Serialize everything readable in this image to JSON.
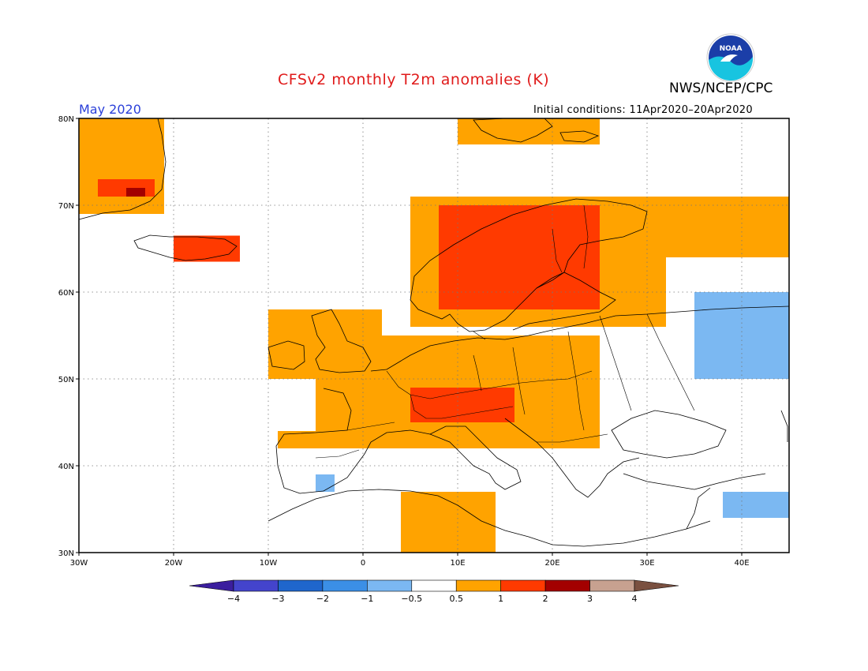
{
  "header": {
    "title": "CFSv2 monthly T2m anomalies (K)",
    "agency": "NWS/NCEP/CPC",
    "month": "May 2020",
    "initial_conditions": "Initial conditions: 11Apr2020–20Apr2020"
  },
  "logo": {
    "text": "NOAA",
    "colors": {
      "top": "#1b3ea8",
      "bottom": "#18c4e0"
    }
  },
  "map": {
    "lon_range": [
      -30,
      45
    ],
    "lat_range": [
      30,
      80
    ],
    "lat_ticks": [
      {
        "value": 80,
        "label": "80N"
      },
      {
        "value": 70,
        "label": "70N"
      },
      {
        "value": 60,
        "label": "60N"
      },
      {
        "value": 50,
        "label": "50N"
      },
      {
        "value": 40,
        "label": "40N"
      },
      {
        "value": 30,
        "label": "30N"
      }
    ],
    "lon_ticks": [
      {
        "value": -30,
        "label": "30W"
      },
      {
        "value": -20,
        "label": "20W"
      },
      {
        "value": -10,
        "label": "10W"
      },
      {
        "value": 0,
        "label": "0"
      },
      {
        "value": 10,
        "label": "10E"
      },
      {
        "value": 20,
        "label": "20E"
      },
      {
        "value": 30,
        "label": "30E"
      },
      {
        "value": 40,
        "label": "40E"
      }
    ],
    "anomaly_regions": [
      {
        "name": "Greenland",
        "level": "0.5–1",
        "lon": [
          -30,
          -21
        ],
        "lat": [
          69,
          80
        ]
      },
      {
        "name": "Greenland east coast",
        "level": "1–2",
        "lon": [
          -28,
          -22
        ],
        "lat": [
          71,
          73
        ]
      },
      {
        "name": "Greenland core",
        "level": "2–3",
        "lon": [
          -25,
          -23
        ],
        "lat": [
          71,
          72
        ]
      },
      {
        "name": "Iceland",
        "level": "1–2",
        "lon": [
          -20,
          -13
        ],
        "lat": [
          63.5,
          66.5
        ]
      },
      {
        "name": "Svalbard",
        "level": "0.5–1",
        "lon": [
          10,
          25
        ],
        "lat": [
          77,
          80
        ]
      },
      {
        "name": "Scandinavia",
        "level": "0.5–1",
        "lon": [
          5,
          32
        ],
        "lat": [
          56,
          71
        ]
      },
      {
        "name": "Central Scandinavia",
        "level": "1–2",
        "lon": [
          8,
          25
        ],
        "lat": [
          58,
          70
        ]
      },
      {
        "name": "British Isles",
        "level": "0.5–1",
        "lon": [
          -10,
          2
        ],
        "lat": [
          50,
          58
        ]
      },
      {
        "name": "Central Europe",
        "level": "0.5–1",
        "lon": [
          -5,
          25
        ],
        "lat": [
          42,
          55
        ]
      },
      {
        "name": "Alps",
        "level": "1–2",
        "lon": [
          5,
          16
        ],
        "lat": [
          45,
          49
        ]
      },
      {
        "name": "Northwest Russia",
        "level": "0.5–1",
        "lon": [
          25,
          45
        ],
        "lat": [
          64,
          71
        ]
      },
      {
        "name": "Iberia north",
        "level": "0.5–1",
        "lon": [
          -9,
          -1
        ],
        "lat": [
          42,
          44
        ]
      },
      {
        "name": "North Africa",
        "level": "0.5–1",
        "lon": [
          4,
          14
        ],
        "lat": [
          30,
          37
        ]
      },
      {
        "name": "Western Russia",
        "level": "-0.5 – -1",
        "lon": [
          35,
          45
        ],
        "lat": [
          50,
          60
        ]
      },
      {
        "name": "Iberia south",
        "level": "-0.5 – -1",
        "lon": [
          -5,
          -3
        ],
        "lat": [
          37,
          39
        ]
      },
      {
        "name": "Middle East",
        "level": "-0.5 – -1",
        "lon": [
          38,
          45
        ],
        "lat": [
          34,
          37
        ]
      }
    ]
  },
  "colorbar": {
    "boundaries": [
      "−4",
      "−3",
      "−2",
      "−1",
      "−0.5",
      "0.5",
      "1",
      "2",
      "3",
      "4"
    ],
    "colors": [
      "#3b1e9e",
      "#4444cc",
      "#1f66cc",
      "#3b8fe6",
      "#7bb8f2",
      "#ffffff",
      "#ffa300",
      "#ff3a00",
      "#a30000",
      "#c7a190",
      "#7a5040"
    ]
  }
}
